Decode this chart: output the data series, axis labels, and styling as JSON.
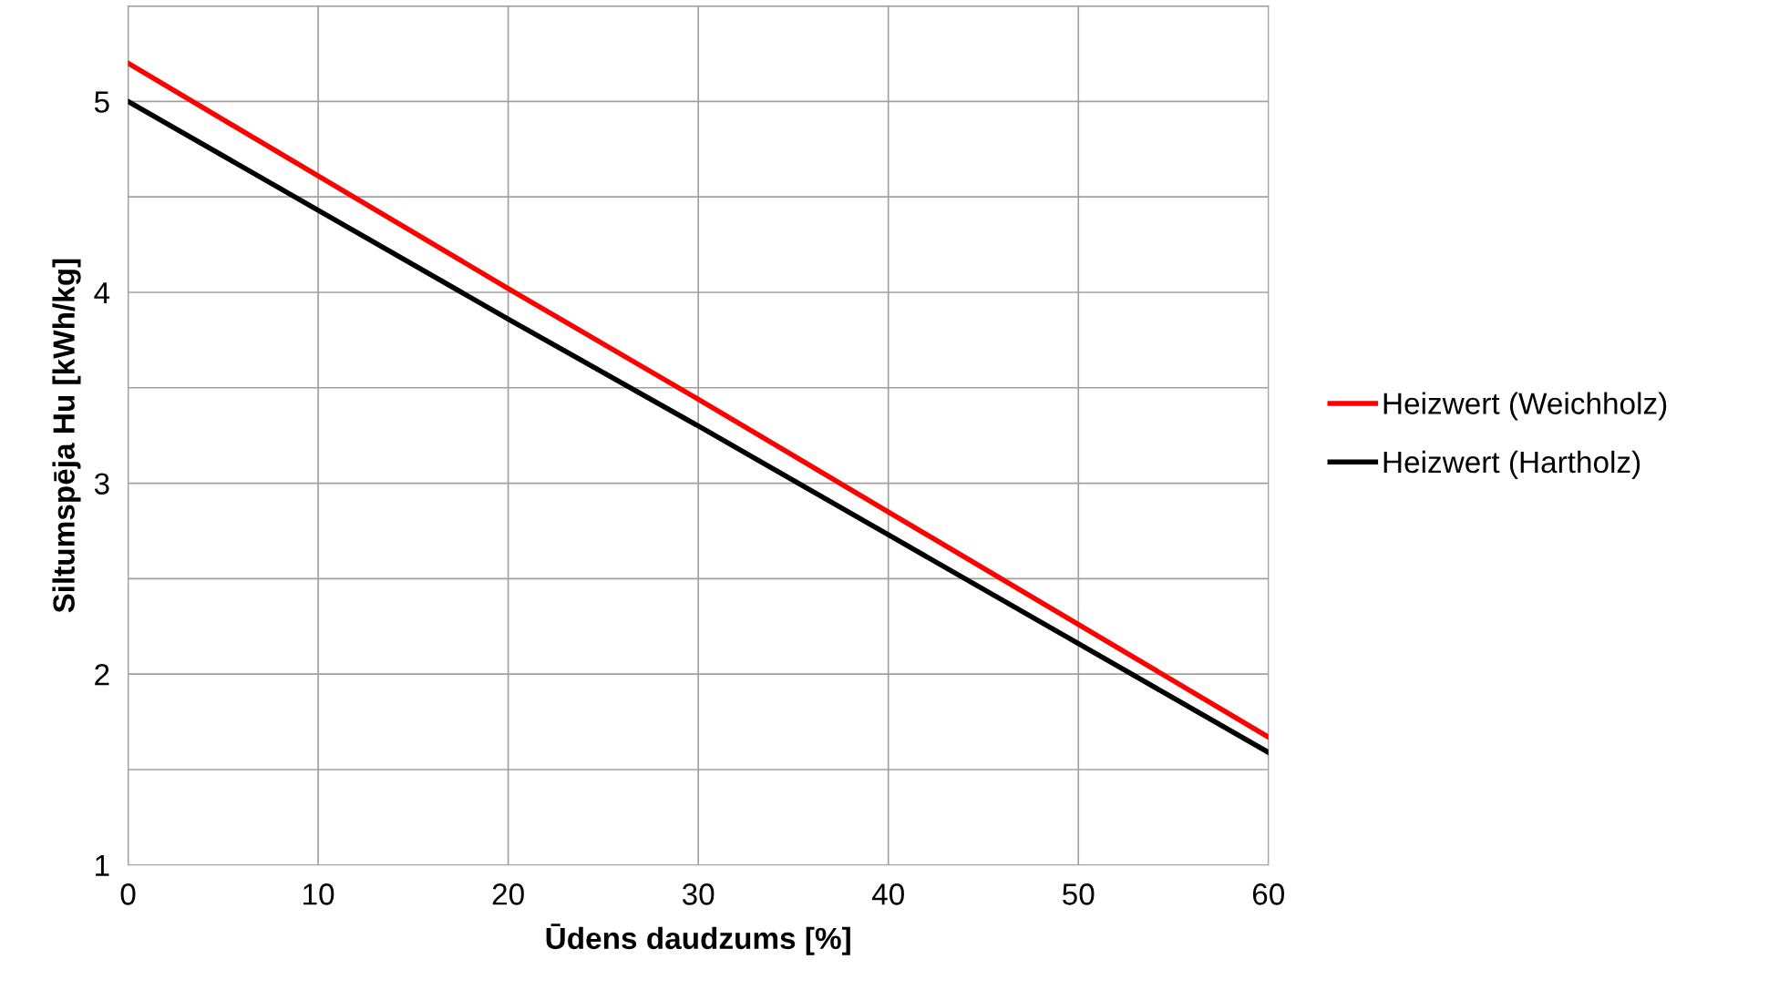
{
  "chart_data": {
    "type": "line",
    "xlabel": "Ūdens daudzums [%]",
    "ylabel": "Siltumspēja Hu [kWh/kg]",
    "x": [
      0,
      10,
      20,
      30,
      40,
      50,
      60
    ],
    "series": [
      {
        "name": "Heizwert (Weichholz)",
        "color": "#ff0000",
        "values": [
          5.2,
          4.61,
          4.02,
          3.44,
          2.85,
          2.26,
          1.67
        ]
      },
      {
        "name": "Heizwert (Hartholz)",
        "color": "#000000",
        "values": [
          5.0,
          4.43,
          3.86,
          3.3,
          2.73,
          2.16,
          1.59
        ]
      }
    ],
    "xlim": [
      0,
      60
    ],
    "xticks": [
      0,
      10,
      20,
      30,
      40,
      50,
      60
    ],
    "ylim": [
      1,
      5.5
    ],
    "yticks": [
      1,
      {
        "value": 1.5,
        "label": null
      },
      2,
      {
        "value": 2.5,
        "label": null
      },
      3,
      {
        "value": 3.5,
        "label": null
      },
      4,
      {
        "value": 4.5,
        "label": null
      },
      5,
      {
        "value": 5.5,
        "label": null
      }
    ],
    "grid": true,
    "legend": "right",
    "marker": "none",
    "line_style": "solid"
  }
}
